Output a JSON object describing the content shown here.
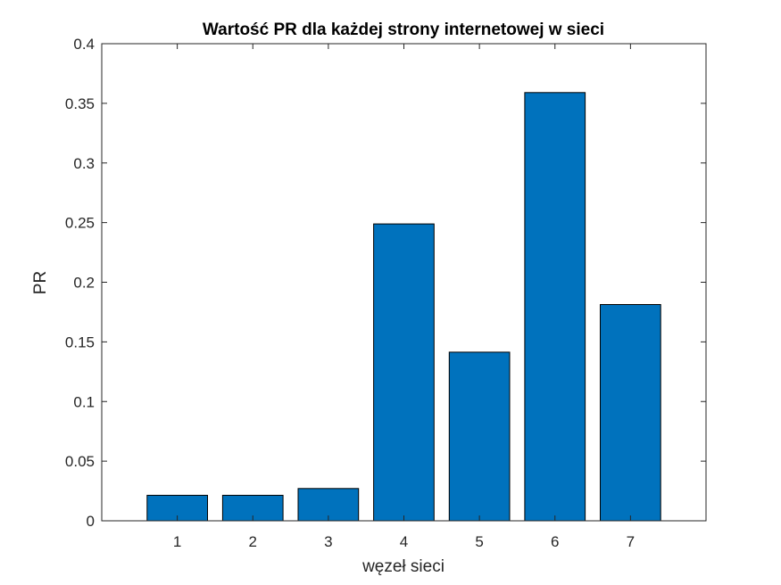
{
  "chart_data": {
    "type": "bar",
    "title": "Wartość PR dla każdej strony internetowej w sieci",
    "xlabel": "węzeł sieci",
    "ylabel": "PR",
    "categories": [
      "1",
      "2",
      "3",
      "4",
      "5",
      "6",
      "7"
    ],
    "values": [
      0.0214,
      0.0214,
      0.0271,
      0.2489,
      0.1414,
      0.359,
      0.1813
    ],
    "xlim": [
      0,
      8
    ],
    "ylim": [
      0,
      0.4
    ],
    "yticks": [
      "0",
      "0.05",
      "0.1",
      "0.15",
      "0.2",
      "0.25",
      "0.3",
      "0.35",
      "0.4"
    ],
    "bar_color": "#0072BD",
    "grid": false,
    "legend": "none"
  }
}
